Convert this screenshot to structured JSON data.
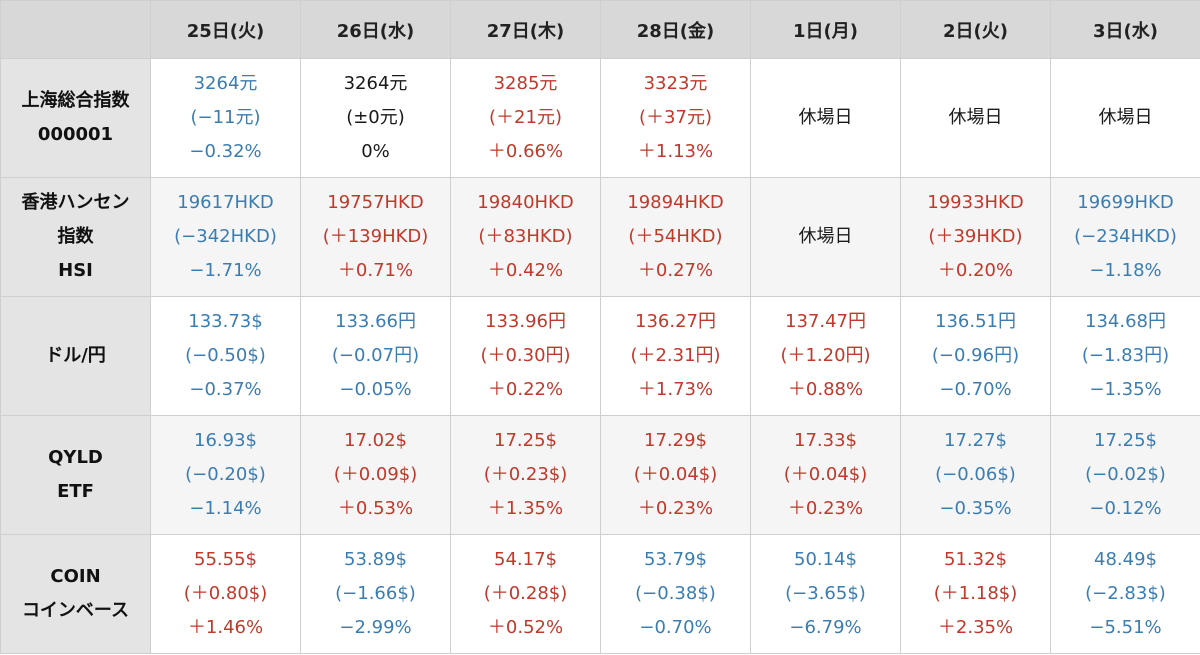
{
  "colors": {
    "down": "#3b7db1",
    "up": "#c0392b",
    "flat": "#1a1a1a",
    "closed": "#1a1a1a"
  },
  "table": {
    "headers": [
      "",
      "25日(火)",
      "26日(水)",
      "27日(木)",
      "28日(金)",
      "1日(月)",
      "2日(火)",
      "3日(水)"
    ],
    "rows": [
      {
        "label": [
          "上海総合指数",
          "000001"
        ],
        "cells": [
          {
            "lines": [
              "3264元",
              "(−11元)",
              "−0.32%"
            ],
            "tone": "down"
          },
          {
            "lines": [
              "3264元",
              "(±0元)",
              "0%"
            ],
            "tone": "flat"
          },
          {
            "lines": [
              "3285元",
              "(＋21元)",
              "＋0.66%"
            ],
            "tone": "up"
          },
          {
            "lines": [
              "3323元",
              "(＋37元)",
              "＋1.13%"
            ],
            "tone": "up"
          },
          {
            "lines": [
              "休場日"
            ],
            "tone": "closed"
          },
          {
            "lines": [
              "休場日"
            ],
            "tone": "closed"
          },
          {
            "lines": [
              "休場日"
            ],
            "tone": "closed"
          }
        ]
      },
      {
        "label": [
          "香港ハンセン",
          "指数",
          "HSI"
        ],
        "cells": [
          {
            "lines": [
              "19617HKD",
              "(−342HKD)",
              "−1.71%"
            ],
            "tone": "down"
          },
          {
            "lines": [
              "19757HKD",
              "(＋139HKD)",
              "＋0.71%"
            ],
            "tone": "up"
          },
          {
            "lines": [
              "19840HKD",
              "(＋83HKD)",
              "＋0.42%"
            ],
            "tone": "up"
          },
          {
            "lines": [
              "19894HKD",
              "(＋54HKD)",
              "＋0.27%"
            ],
            "tone": "up"
          },
          {
            "lines": [
              "休場日"
            ],
            "tone": "closed"
          },
          {
            "lines": [
              "19933HKD",
              "(＋39HKD)",
              "＋0.20%"
            ],
            "tone": "up"
          },
          {
            "lines": [
              "19699HKD",
              "(−234HKD)",
              "−1.18%"
            ],
            "tone": "down"
          }
        ]
      },
      {
        "label": [
          "ドル/円"
        ],
        "cells": [
          {
            "lines": [
              "133.73$",
              "(−0.50$)",
              "−0.37%"
            ],
            "tone": "down"
          },
          {
            "lines": [
              "133.66円",
              "(−0.07円)",
              "−0.05%"
            ],
            "tone": "down"
          },
          {
            "lines": [
              "133.96円",
              "(＋0.30円)",
              "＋0.22%"
            ],
            "tone": "up"
          },
          {
            "lines": [
              "136.27円",
              "(＋2.31円)",
              "＋1.73%"
            ],
            "tone": "up"
          },
          {
            "lines": [
              "137.47円",
              "(＋1.20円)",
              "＋0.88%"
            ],
            "tone": "up"
          },
          {
            "lines": [
              "136.51円",
              "(−0.96円)",
              "−0.70%"
            ],
            "tone": "down"
          },
          {
            "lines": [
              "134.68円",
              "(−1.83円)",
              "−1.35%"
            ],
            "tone": "down"
          }
        ]
      },
      {
        "label": [
          "QYLD",
          "ETF"
        ],
        "cells": [
          {
            "lines": [
              "16.93$",
              "(−0.20$)",
              "−1.14%"
            ],
            "tone": "down"
          },
          {
            "lines": [
              "17.02$",
              "(＋0.09$)",
              "＋0.53%"
            ],
            "tone": "up"
          },
          {
            "lines": [
              "17.25$",
              "(＋0.23$)",
              "＋1.35%"
            ],
            "tone": "up"
          },
          {
            "lines": [
              "17.29$",
              "(＋0.04$)",
              "＋0.23%"
            ],
            "tone": "up"
          },
          {
            "lines": [
              "17.33$",
              "(＋0.04$)",
              "＋0.23%"
            ],
            "tone": "up"
          },
          {
            "lines": [
              "17.27$",
              "(−0.06$)",
              "−0.35%"
            ],
            "tone": "down"
          },
          {
            "lines": [
              "17.25$",
              "(−0.02$)",
              "−0.12%"
            ],
            "tone": "down"
          }
        ]
      },
      {
        "label": [
          "COIN",
          "コインベース"
        ],
        "cells": [
          {
            "lines": [
              "55.55$",
              "(＋0.80$)",
              "＋1.46%"
            ],
            "tone": "up"
          },
          {
            "lines": [
              "53.89$",
              "(−1.66$)",
              "−2.99%"
            ],
            "tone": "down"
          },
          {
            "lines": [
              "54.17$",
              "(＋0.28$)",
              "＋0.52%"
            ],
            "tone": "up"
          },
          {
            "lines": [
              "53.79$",
              "(−0.38$)",
              "−0.70%"
            ],
            "tone": "down"
          },
          {
            "lines": [
              "50.14$",
              "(−3.65$)",
              "−6.79%"
            ],
            "tone": "down"
          },
          {
            "lines": [
              "51.32$",
              "(＋1.18$)",
              "＋2.35%"
            ],
            "tone": "up"
          },
          {
            "lines": [
              "48.49$",
              "(−2.83$)",
              "−5.51%"
            ],
            "tone": "down"
          }
        ]
      }
    ]
  }
}
